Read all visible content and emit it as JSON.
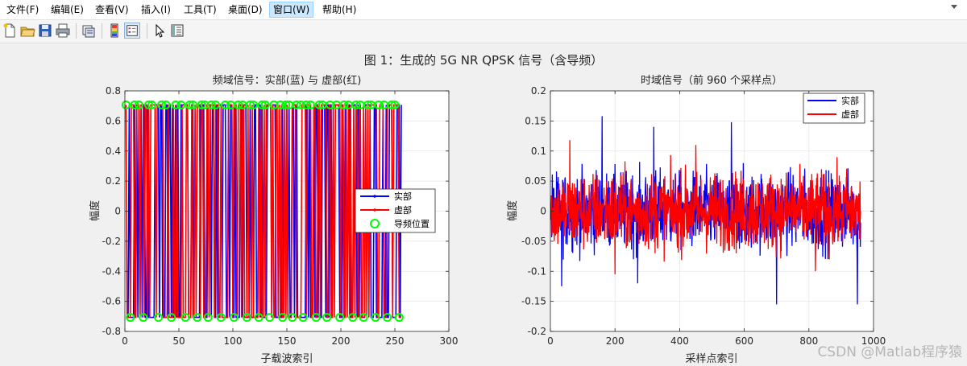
{
  "menubar": {
    "items": [
      "文件(F)",
      "编辑(E)",
      "查看(V)",
      "插入(I)",
      "工具(T)",
      "桌面(D)",
      "窗口(W)",
      "帮助(H)"
    ],
    "active_index": 6
  },
  "toolbar": {
    "buttons": [
      "new-figure-icon",
      "open-file-icon",
      "save-icon",
      "print-icon",
      "link-plot-icon",
      "colorbar-icon",
      "legend-icon",
      "pointer-icon",
      "property-inspector-icon"
    ]
  },
  "figure": {
    "sgtitle": "图 1：生成的 5G NR QPSK 信号（含导频）"
  },
  "watermark": "CSDN @Matlab程序猿",
  "chart_data": [
    {
      "type": "line",
      "title": "频域信号：实部(蓝) 与 虚部(红)",
      "xlabel": "子载波索引",
      "ylabel": "幅度",
      "xlim": [
        0,
        300
      ],
      "ylim": [
        -0.8,
        0.8
      ],
      "xticks": [
        "0",
        "50",
        "100",
        "150",
        "200",
        "250",
        "300"
      ],
      "yticks": [
        "0.8",
        "0.6",
        "0.4",
        "0.2",
        "0",
        "-0.2",
        "-0.4",
        "-0.6",
        "-0.8"
      ],
      "grid": true,
      "legend_position": "right",
      "series": [
        {
          "name": "实部",
          "color": "#0000ff",
          "values": "QPSK ±0.7071 for subcarriers 1-256"
        },
        {
          "name": "虚部",
          "color": "#ff0000",
          "values": "QPSK ±0.7071 for subcarriers 1-256"
        },
        {
          "name": "导频位置",
          "color": "#00ff00",
          "marker": "circle",
          "x": [
            1,
            5,
            9,
            13,
            17,
            22,
            25,
            31,
            34,
            38,
            43,
            47,
            52,
            56,
            60,
            63,
            67,
            71,
            74,
            77,
            80,
            84,
            89,
            93,
            98,
            101,
            105,
            109,
            113,
            116,
            119,
            124,
            127,
            130,
            134,
            138,
            144,
            146,
            149,
            152,
            155,
            159,
            163,
            165,
            168,
            172,
            177,
            180,
            183,
            187,
            190,
            196,
            199,
            203,
            207,
            211,
            214,
            218,
            221,
            225,
            228,
            232,
            235,
            240,
            243,
            247,
            250,
            254
          ]
        }
      ]
    },
    {
      "type": "line",
      "title": "时域信号（前 960 个采样点）",
      "xlabel": "采样点索引",
      "ylabel": "幅度",
      "xlim": [
        0,
        1000
      ],
      "ylim": [
        -0.2,
        0.2
      ],
      "xticks": [
        "0",
        "200",
        "400",
        "600",
        "800",
        "1000"
      ],
      "yticks": [
        "0.2",
        "0.15",
        "0.1",
        "0.05",
        "0",
        "-0.05",
        "-0.1",
        "-0.15",
        "-0.2"
      ],
      "grid": true,
      "legend_position": "top-right",
      "series": [
        {
          "name": "实部",
          "color": "#0000ff"
        },
        {
          "name": "虚部",
          "color": "#ff0000"
        }
      ]
    }
  ]
}
